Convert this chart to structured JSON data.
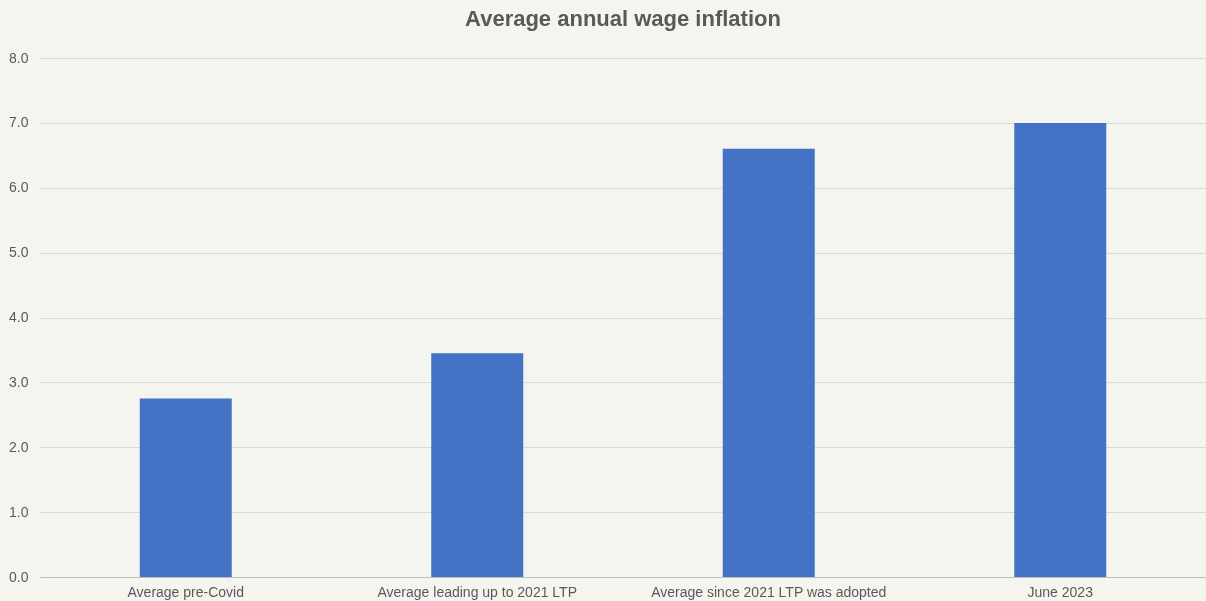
{
  "chart_data": {
    "type": "bar",
    "title": "Average annual wage inflation",
    "categories": [
      "Average pre-Covid",
      "Average leading up to 2021 LTP",
      "Average since 2021 LTP was adopted",
      "June 2023"
    ],
    "values": [
      2.75,
      3.45,
      6.6,
      7.0
    ],
    "color": "#4472c4",
    "ylim": [
      0,
      8
    ],
    "yticks": [
      {
        "value": 0,
        "label": "0.0"
      },
      {
        "value": 1,
        "label": "1.0"
      },
      {
        "value": 2,
        "label": "2.0"
      },
      {
        "value": 3,
        "label": "3.0"
      },
      {
        "value": 4,
        "label": "4.0"
      },
      {
        "value": 5,
        "label": "5.0"
      },
      {
        "value": 6,
        "label": "6.0"
      },
      {
        "value": 7,
        "label": "7.0"
      },
      {
        "value": 8,
        "label": "8.0"
      }
    ],
    "grid": "y"
  }
}
